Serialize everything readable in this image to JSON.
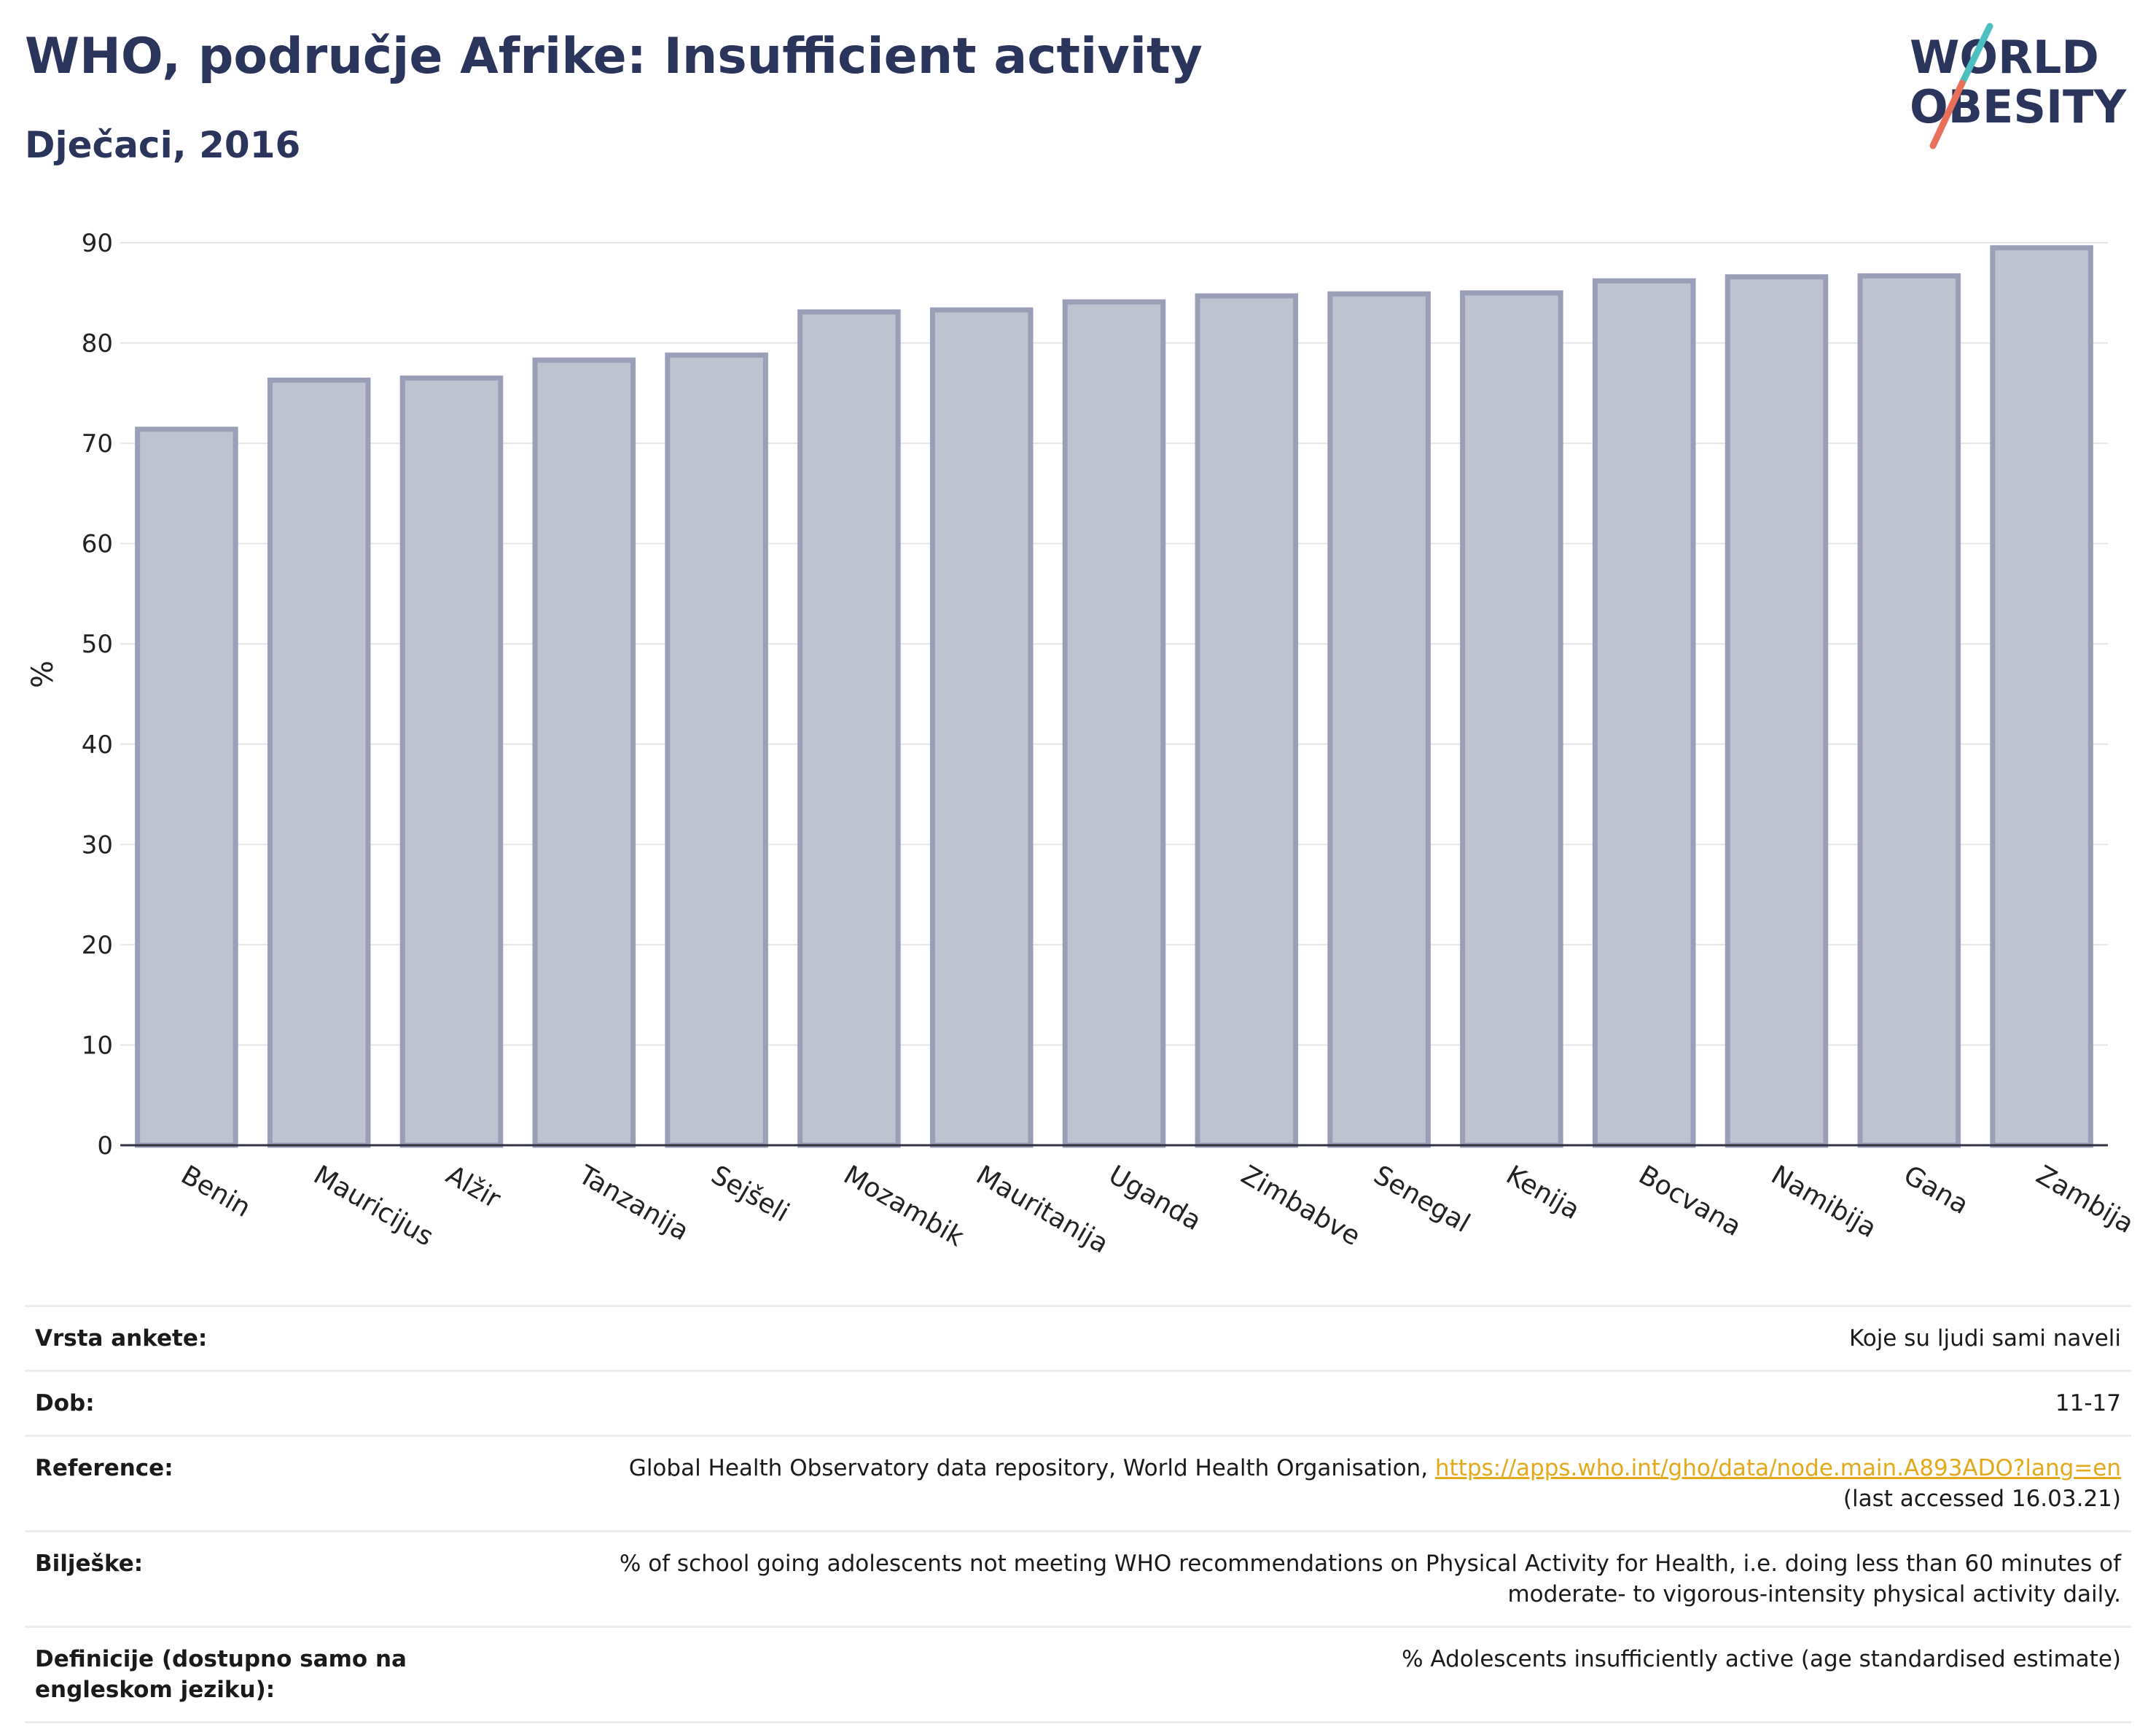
{
  "header": {
    "title": "WHO, područje Afrike: Insufficient activity",
    "subtitle": "Dječaci, 2016"
  },
  "logo": {
    "line1": "WORLD",
    "line2": "OBESITY",
    "slash_colors": [
      "#4dbfc1",
      "#e8705a"
    ]
  },
  "colors": {
    "bar_fill": "#bfc2cf",
    "bar_stroke": "#9a9fb7",
    "text_dark": "#2b355c"
  },
  "chart_data": {
    "type": "bar",
    "categories": [
      "Benin",
      "Mauricijus",
      "Alžir",
      "Tanzanija",
      "Sejšeli",
      "Mozambik",
      "Mauritanija",
      "Uganda",
      "Zimbabve",
      "Senegal",
      "Kenija",
      "Bocvana",
      "Namibija",
      "Gana",
      "Zambija"
    ],
    "values": [
      71.4,
      76.3,
      76.5,
      78.3,
      78.8,
      83.1,
      83.3,
      84.1,
      84.7,
      84.9,
      85.0,
      86.2,
      86.6,
      86.7,
      89.5
    ],
    "ylabel": "%",
    "ylim": [
      0,
      90
    ],
    "yticks": [
      0,
      10,
      20,
      30,
      40,
      50,
      60,
      70,
      80,
      90
    ],
    "grid": true
  },
  "info": {
    "survey_label": "Vrsta ankete:",
    "survey_value": "Koje su ljudi sami naveli",
    "age_label": "Dob:",
    "age_value": "11-17",
    "reference_label": "Reference:",
    "reference_text": "Global Health Observatory data repository, World Health Organisation, ",
    "reference_link": "https://apps.who.int/gho/data/node.main.A893ADO?lang=en",
    "reference_accessed": "(last accessed 16.03.21)",
    "notes_label": "Bilješke:",
    "notes_value": "% of school going adolescents not meeting WHO recommendations on Physical Activity for Health, i.e. doing less than 60 minutes of moderate- to vigorous-intensity physical activity daily.",
    "definitions_label": "Definicije (dostupno samo na engleskom jeziku):",
    "definitions_value": "% Adolescents insufficiently active (age standardised estimate)"
  }
}
